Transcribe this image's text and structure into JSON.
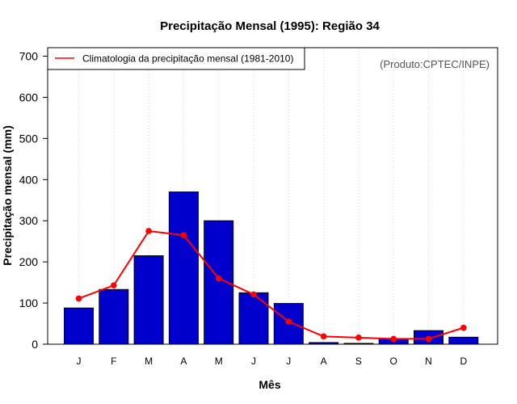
{
  "chart_data": {
    "type": "bar",
    "title": "Precipitação Mensal (1995): Região 34",
    "xlabel": "Mês",
    "ylabel": "Precipitação mensal (mm)",
    "ylim": [
      0,
      700
    ],
    "yticks": [
      0,
      100,
      200,
      300,
      400,
      500,
      600,
      700
    ],
    "categories": [
      "J",
      "F",
      "M",
      "A",
      "M",
      "J",
      "J",
      "A",
      "S",
      "O",
      "N",
      "D"
    ],
    "series": [
      {
        "name": "Precipitação mensal (1995)",
        "type": "bar",
        "color": "#0000cd",
        "values": [
          88,
          133,
          215,
          370,
          300,
          125,
          99,
          4,
          2,
          13,
          33,
          17
        ]
      },
      {
        "name": "Climatologia da precipitação mensal (1981-2010)",
        "type": "line",
        "color": "#ff0000",
        "values": [
          111,
          143,
          275,
          265,
          160,
          121,
          55,
          19,
          16,
          13,
          13,
          40
        ]
      }
    ],
    "legend": {
      "label": "Climatologia da precipitação mensal (1981-2010)",
      "position": "top-left"
    },
    "annotation": "(Produto:CPTEC/INPE)",
    "grid": "vertical dotted"
  }
}
